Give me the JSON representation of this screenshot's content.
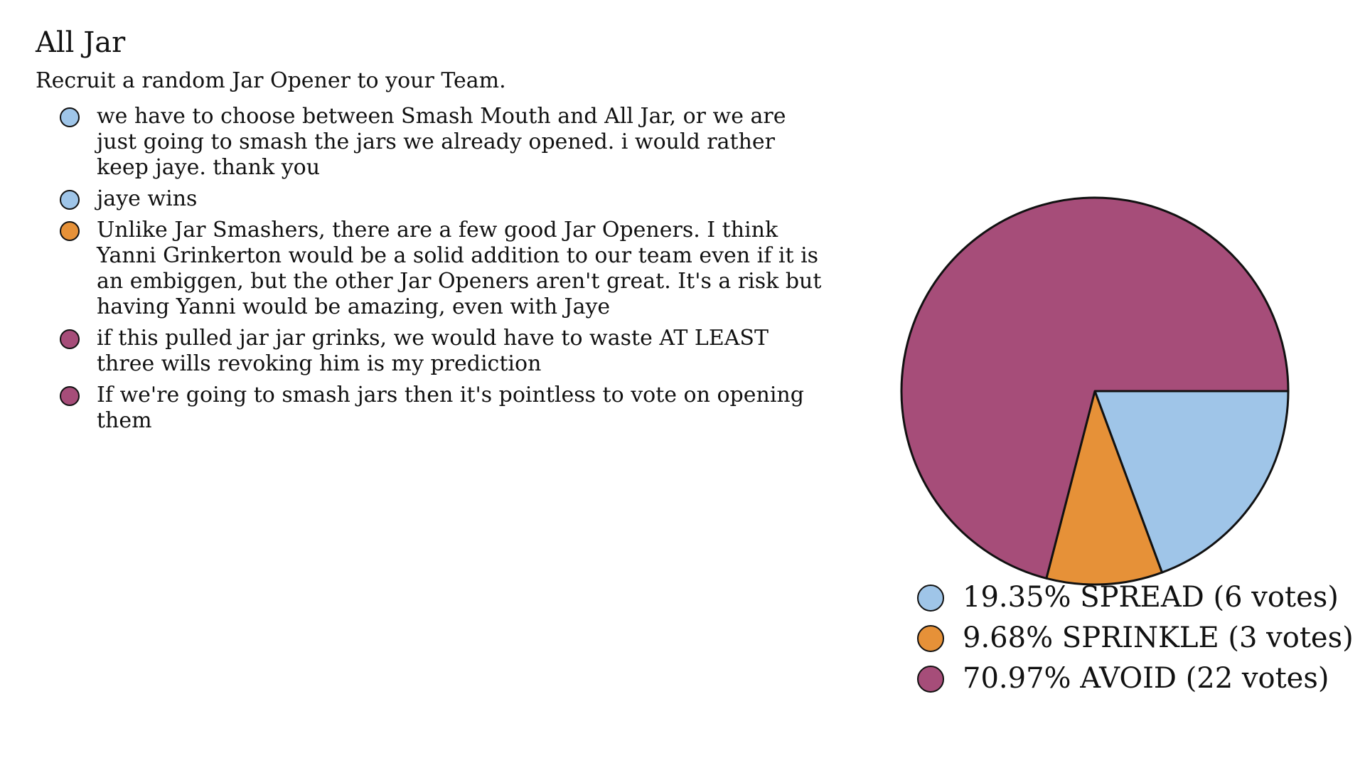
{
  "title": "All Jar",
  "subtitle": "Recruit a random Jar Opener to your Team.",
  "colors": {
    "spread": "#9fc5e8",
    "sprinkle": "#e69138",
    "avoid": "#a64d79",
    "outline": "#111111"
  },
  "comments": [
    {
      "color": "#9fc5e8",
      "text": "we have to choose between Smash Mouth and All Jar, or we are just going to smash the jars we already opened. i would rather keep jaye. thank you"
    },
    {
      "color": "#9fc5e8",
      "text": "jaye wins"
    },
    {
      "color": "#e69138",
      "text": "Unlike Jar Smashers, there are a few good Jar Openers. I think Yanni Grinkerton would be a solid addition to our team even if it is an embiggen, but the other Jar Openers aren't great. It's a risk but having Yanni would be amazing, even with Jaye"
    },
    {
      "color": "#a64d79",
      "text": "if this pulled jar jar grinks, we would have to waste AT LEAST three wills revoking him is my prediction"
    },
    {
      "color": "#a64d79",
      "text": "If we're going to smash jars then it's pointless to vote on opening them"
    }
  ],
  "chart_data": {
    "type": "pie",
    "categories": [
      "SPREAD",
      "SPRINKLE",
      "AVOID"
    ],
    "values": [
      6,
      3,
      22
    ],
    "percentages": [
      19.35,
      9.68,
      70.97
    ],
    "colors": [
      "#9fc5e8",
      "#e69138",
      "#a64d79"
    ],
    "legend": [
      "19.35% SPREAD (6 votes)",
      "9.68% SPRINKLE (3 votes)",
      "70.97% AVOID (22 votes)"
    ],
    "legend_position": "bottom",
    "start_angle_deg": 0,
    "direction": "clockwise"
  }
}
